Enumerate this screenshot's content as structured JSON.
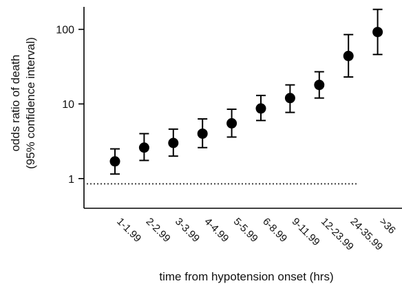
{
  "chart_data": {
    "type": "scatter",
    "title": "",
    "xlabel": "time from hypotension onset (hrs)",
    "ylabel_lines": [
      "odds ratio of death",
      "(95% confidence interval)"
    ],
    "y_scale": "log",
    "ylim": [
      0.4,
      200
    ],
    "yticks": [
      {
        "value": 1,
        "label": "1"
      },
      {
        "value": 10,
        "label": "10"
      },
      {
        "value": 100,
        "label": "100"
      }
    ],
    "reference_line": {
      "value": 0.85,
      "style": "dotted"
    },
    "categories": [
      "1-1.99",
      "2-2.99",
      "3-3.99",
      "4-4.99",
      "5-5.99",
      "6-8.99",
      "9-11.99",
      "12-23.99",
      "24-35.99",
      ">36"
    ],
    "series": [
      {
        "values": [
          1.7,
          2.6,
          3.0,
          4.0,
          5.5,
          8.7,
          12,
          18,
          44,
          92
        ],
        "ci_low": [
          1.15,
          1.75,
          2.0,
          2.6,
          3.6,
          6.0,
          7.7,
          12,
          23,
          46
        ],
        "ci_high": [
          2.5,
          4.0,
          4.6,
          6.3,
          8.5,
          13,
          18,
          27,
          85,
          185
        ]
      }
    ],
    "grid": false,
    "legend": "none",
    "colors": {
      "marker": "#000000",
      "axis": "#000000",
      "reference": "#333333"
    }
  }
}
